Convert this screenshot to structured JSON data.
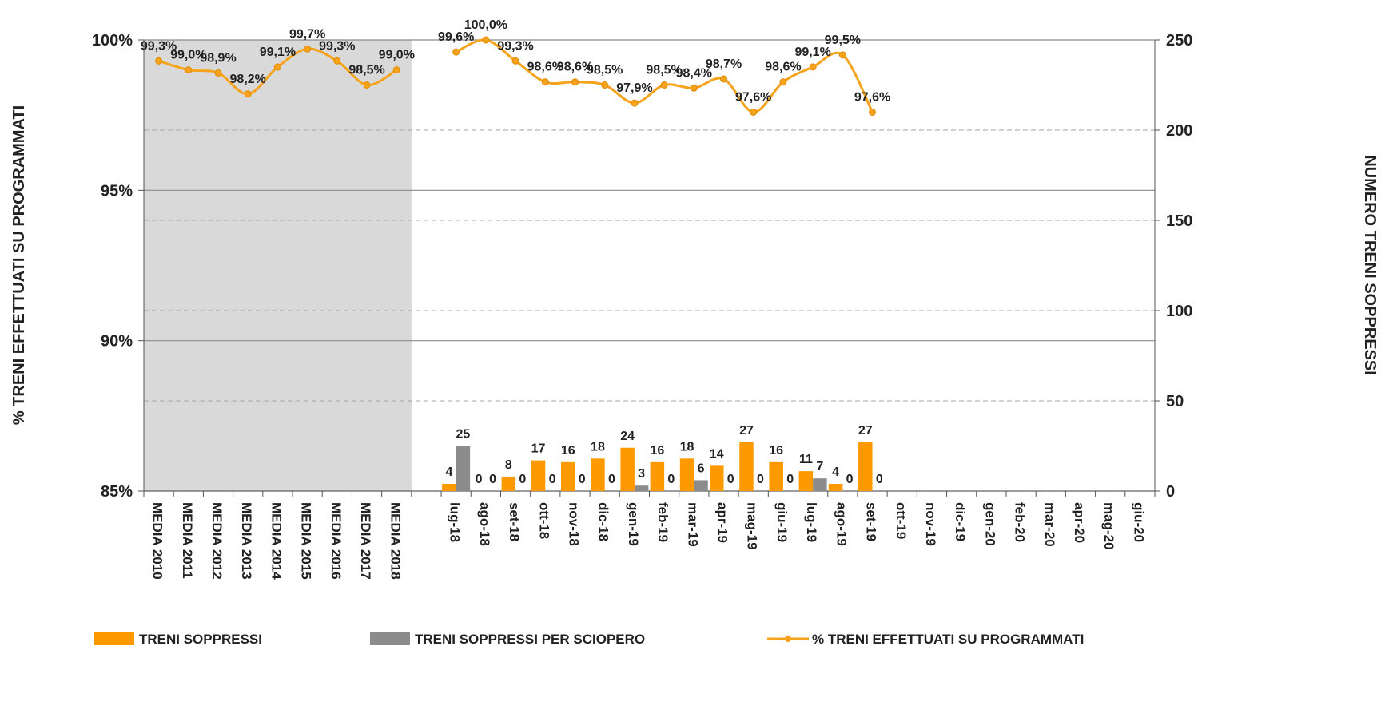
{
  "chart_data": {
    "type": "bar",
    "ylabel": "% TRENI EFFETTUATI SU PROGRAMMATI",
    "y2label": "NUMERO TRENI SOPPRESSI",
    "categories": [
      "MEDIA 2010",
      "MEDIA 2011",
      "MEDIA 2012",
      "MEDIA 2013",
      "MEDIA 2014",
      "MEDIA 2015",
      "MEDIA 2016",
      "MEDIA 2017",
      "MEDIA 2018",
      null,
      "lug-18",
      "ago-18",
      "set-18",
      "ott-18",
      "nov-18",
      "dic-18",
      "gen-19",
      "feb-19",
      "mar-19",
      "apr-19",
      "mag-19",
      "giu-19",
      "lug-19",
      "ago-19",
      "set-19",
      "ott-19",
      "nov-19",
      "dic-19",
      "gen-20",
      "feb-20",
      "mar-20",
      "apr-20",
      "mag-20",
      "giu-20"
    ],
    "ylim": [
      85,
      100
    ],
    "yticks": [
      {
        "value": 85,
        "label": "85%"
      },
      {
        "value": 90,
        "label": "90%"
      },
      {
        "value": 95,
        "label": "95%"
      },
      {
        "value": 100,
        "label": "100%"
      }
    ],
    "y2lim": [
      0,
      250
    ],
    "y2ticks": [
      0,
      50,
      100,
      150,
      200,
      250
    ],
    "grid": true,
    "series": [
      {
        "name": "TRENI SOPPRESSI",
        "type": "bar",
        "axis": "y2",
        "color": "#FF9900",
        "values": [
          null,
          null,
          null,
          null,
          null,
          null,
          null,
          null,
          null,
          null,
          4,
          0,
          8,
          17,
          16,
          18,
          24,
          16,
          18,
          14,
          27,
          16,
          11,
          4,
          27,
          null,
          null,
          null,
          null,
          null,
          null,
          null,
          null,
          null
        ]
      },
      {
        "name": "TRENI SOPPRESSI PER SCIOPERO",
        "type": "bar",
        "axis": "y2",
        "color": "#8C8C8C",
        "values": [
          null,
          null,
          null,
          null,
          null,
          null,
          null,
          null,
          null,
          null,
          25,
          0,
          0,
          0,
          0,
          0,
          3,
          0,
          6,
          0,
          0,
          0,
          7,
          0,
          0,
          null,
          null,
          null,
          null,
          null,
          null,
          null,
          null,
          null
        ]
      },
      {
        "name": "% TRENI EFFETTUATI SU PROGRAMMATI",
        "type": "line",
        "axis": "y",
        "color": "#F7A21B",
        "values": [
          99.3,
          99.0,
          98.9,
          98.2,
          99.1,
          99.7,
          99.3,
          98.5,
          99.0,
          null,
          99.6,
          100.0,
          99.3,
          98.6,
          98.6,
          98.5,
          97.9,
          98.5,
          98.4,
          98.7,
          97.6,
          98.6,
          99.1,
          99.5,
          97.6,
          null,
          null,
          null,
          null,
          null,
          null,
          null,
          null,
          null
        ],
        "value_labels": [
          "99,3%",
          "99,0%",
          "98,9%",
          "98,2%",
          "99,1%",
          "99,7%",
          "99,3%",
          "98,5%",
          "99,0%",
          null,
          "99,6%",
          "100,0%",
          "99,3%",
          "98,6%",
          "98,6%",
          "98,5%",
          "97,9%",
          "98,5%",
          "98,4%",
          "98,7%",
          "97,6%",
          "98,6%",
          "99,1%",
          "99,5%",
          "97,6%",
          null,
          null,
          null,
          null,
          null,
          null,
          null,
          null,
          null
        ]
      }
    ]
  }
}
